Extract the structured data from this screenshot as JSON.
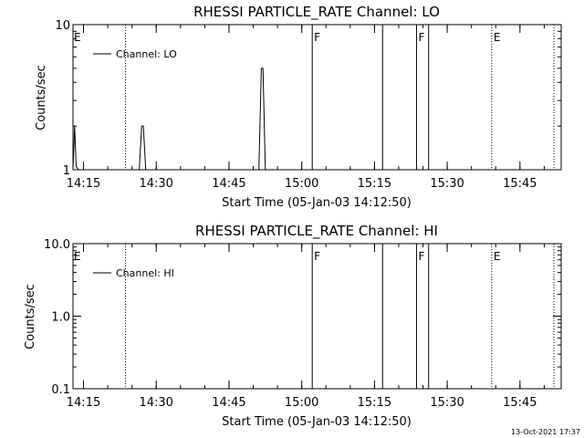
{
  "footer": {
    "timestamp": "13-Oct-2021 17:37"
  },
  "chart_data": [
    {
      "type": "line",
      "title": "RHESSI PARTICLE_RATE Channel: LO",
      "xlabel": "Start Time (05-Jan-03 14:12:50)",
      "ylabel": "Counts/sec",
      "yscale": "log",
      "xlim": [
        "14:12:50",
        "15:53:30"
      ],
      "ylim": [
        1,
        10
      ],
      "ytick_labels": [
        {
          "value": 1,
          "label": "1"
        },
        {
          "value": 10,
          "label": "10"
        }
      ],
      "xtick_labels": [
        "14:15",
        "14:30",
        "14:45",
        "15:00",
        "15:15",
        "15:30",
        "15:45"
      ],
      "legend": {
        "placement": "top-left",
        "label": "Channel: LO"
      },
      "series": [
        {
          "name": "Channel: LO",
          "x": [
            "14:12:50",
            "14:13:10",
            "14:13:30",
            "14:14:00",
            "14:26:30",
            "14:27:00",
            "14:27:20",
            "14:27:50",
            "14:51:10",
            "14:51:40",
            "14:52:00",
            "14:52:30"
          ],
          "y": [
            1,
            2,
            1.05,
            1,
            1,
            2,
            2,
            1,
            1,
            5,
            5,
            1
          ]
        }
      ],
      "markers": [
        {
          "time": "14:23:40",
          "style": "dotted",
          "label": ""
        },
        {
          "time": "15:02:10",
          "style": "solid",
          "label": "F"
        },
        {
          "time": "15:16:40",
          "style": "solid",
          "label": ""
        },
        {
          "time": "15:23:40",
          "style": "solid",
          "label": "F"
        },
        {
          "time": "15:26:10",
          "style": "solid",
          "label": ""
        },
        {
          "time": "15:39:10",
          "style": "dotted",
          "label": "E"
        },
        {
          "time": "15:52:00",
          "style": "dotted",
          "label": ""
        }
      ],
      "start_marker_label": "E"
    },
    {
      "type": "line",
      "title": "RHESSI PARTICLE_RATE Channel: HI",
      "xlabel": "Start Time (05-Jan-03 14:12:50)",
      "ylabel": "Counts/sec",
      "yscale": "log",
      "xlim": [
        "14:12:50",
        "15:53:30"
      ],
      "ylim": [
        0.1,
        10
      ],
      "ytick_labels": [
        {
          "value": 0.1,
          "label": "0.1"
        },
        {
          "value": 1,
          "label": "1.0"
        },
        {
          "value": 10,
          "label": "10.0"
        }
      ],
      "xtick_labels": [
        "14:15",
        "14:30",
        "14:45",
        "15:00",
        "15:15",
        "15:30",
        "15:45"
      ],
      "legend": {
        "placement": "top-left",
        "label": "Channel: HI"
      },
      "series": [
        {
          "name": "Channel: HI",
          "x": [],
          "y": []
        }
      ],
      "markers": [
        {
          "time": "14:23:40",
          "style": "dotted",
          "label": ""
        },
        {
          "time": "15:02:10",
          "style": "solid",
          "label": "F"
        },
        {
          "time": "15:16:40",
          "style": "solid",
          "label": ""
        },
        {
          "time": "15:23:40",
          "style": "solid",
          "label": "F"
        },
        {
          "time": "15:26:10",
          "style": "solid",
          "label": ""
        },
        {
          "time": "15:39:10",
          "style": "dotted",
          "label": "E"
        },
        {
          "time": "15:52:00",
          "style": "dotted",
          "label": ""
        }
      ],
      "start_marker_label": "E"
    }
  ]
}
